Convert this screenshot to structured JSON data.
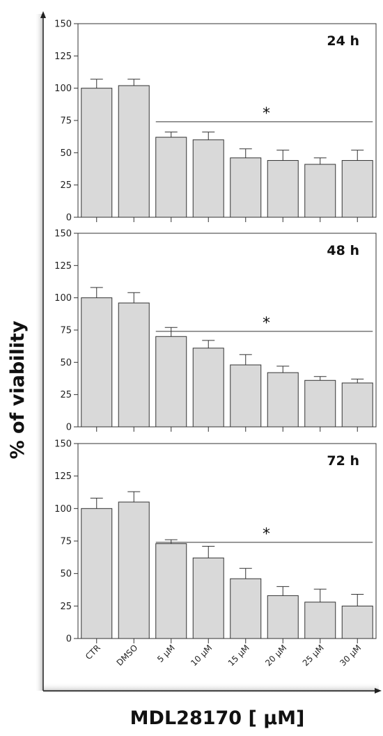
{
  "chart_data": {
    "type": "bar",
    "ylabel": "% of viability",
    "xlabel": "MDL28170 [ µM]",
    "categories": [
      "CTR",
      "DMSO",
      "5 µM",
      "10 µM",
      "15 µM",
      "20 µM",
      "25 µM",
      "30 µM"
    ],
    "ylim": [
      0,
      150
    ],
    "yticks": [
      "0",
      "25",
      "50",
      "75",
      "100",
      "125",
      "150"
    ],
    "bar_color": "#d9d9d9",
    "significance_symbol": "*",
    "significance_span": [
      "5 µM",
      "30 µM"
    ],
    "panels": [
      {
        "label": "24 h",
        "values": [
          100,
          102,
          62,
          60,
          46,
          44,
          41,
          44
        ],
        "errors": [
          7,
          5,
          4,
          6,
          7,
          8,
          5,
          8
        ]
      },
      {
        "label": "48 h",
        "values": [
          100,
          96,
          70,
          61,
          48,
          42,
          36,
          34
        ],
        "errors": [
          8,
          8,
          7,
          6,
          8,
          5,
          3,
          3
        ]
      },
      {
        "label": "72 h",
        "values": [
          100,
          105,
          73,
          62,
          46,
          33,
          28,
          25
        ],
        "errors": [
          8,
          8,
          3,
          9,
          8,
          7,
          10,
          9
        ]
      }
    ]
  }
}
